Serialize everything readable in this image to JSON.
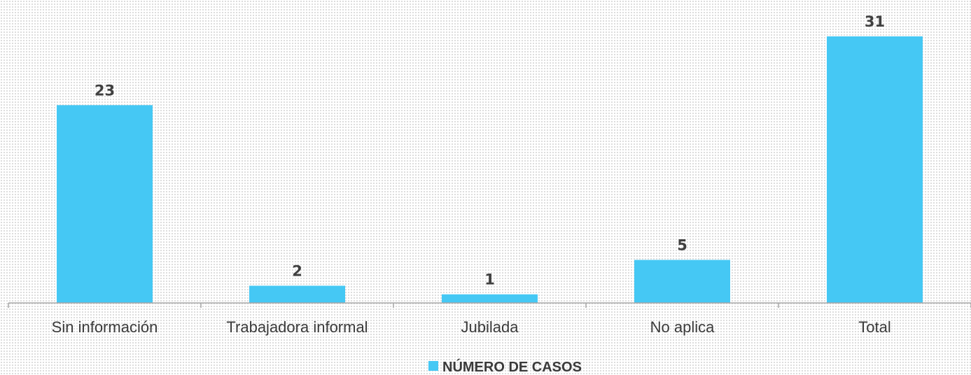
{
  "chart_data": {
    "type": "bar",
    "categories": [
      "Sin información",
      "Trabajadora informal",
      "Jubilada",
      "No aplica",
      "Total"
    ],
    "series": [
      {
        "name": "NÚMERO DE CASOS",
        "values": [
          23,
          2,
          1,
          5,
          31
        ],
        "color": "#45c8f4"
      }
    ],
    "data_labels": [
      "23",
      "2",
      "1",
      "5",
      "31"
    ],
    "ylim": [
      0,
      31
    ],
    "grid": false,
    "legend_position": "bottom-center",
    "colors": {
      "bar": "#45c8f4",
      "axis": "#a6a6a6",
      "text": "#3a3a3a"
    }
  }
}
